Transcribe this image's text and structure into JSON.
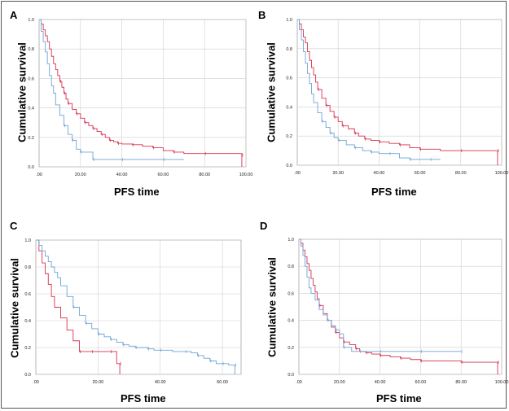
{
  "colors": {
    "red": "#d6324f",
    "blue": "#6fa3d6",
    "grid": "#cfcfcf",
    "axis": "#888888"
  },
  "chart_data": [
    {
      "panel": "A",
      "type": "line",
      "step": true,
      "xlabel": "PFS time",
      "ylabel": "Cumulative survival",
      "xlim": [
        0,
        100
      ],
      "ylim": [
        0,
        1
      ],
      "xticks": [
        ".00",
        "20.00",
        "40.00",
        "60.00",
        "80.00",
        "100.00"
      ],
      "yticks": [
        "0.0",
        "0.2",
        "0.4",
        "0.6",
        "0.8",
        "1.0"
      ],
      "grid": true,
      "series": [
        {
          "color": "red",
          "x": [
            0,
            1,
            2,
            3,
            4,
            5,
            6,
            7,
            8,
            9,
            10,
            11,
            12,
            13,
            14,
            16,
            18,
            20,
            22,
            24,
            26,
            28,
            30,
            32,
            34,
            36,
            38,
            40,
            45,
            50,
            55,
            60,
            65,
            70,
            80,
            90,
            98
          ],
          "y": [
            1.0,
            0.97,
            0.93,
            0.89,
            0.85,
            0.8,
            0.75,
            0.7,
            0.66,
            0.62,
            0.58,
            0.54,
            0.5,
            0.46,
            0.43,
            0.39,
            0.36,
            0.33,
            0.3,
            0.28,
            0.26,
            0.24,
            0.22,
            0.2,
            0.18,
            0.17,
            0.16,
            0.155,
            0.15,
            0.14,
            0.13,
            0.11,
            0.1,
            0.09,
            0.09,
            0.09,
            0.08
          ],
          "end": 0.0
        },
        {
          "color": "blue",
          "x": [
            0,
            1,
            2,
            3,
            4,
            5,
            6,
            7,
            8,
            10,
            12,
            14,
            16,
            18,
            20,
            22,
            26,
            30,
            40,
            50,
            60,
            70
          ],
          "y": [
            1.0,
            0.92,
            0.85,
            0.78,
            0.7,
            0.62,
            0.55,
            0.5,
            0.42,
            0.35,
            0.28,
            0.22,
            0.18,
            0.12,
            0.1,
            0.1,
            0.05,
            0.05,
            0.05,
            0.05,
            0.05,
            0.05
          ],
          "end": null
        }
      ]
    },
    {
      "panel": "B",
      "type": "line",
      "step": true,
      "xlabel": "PFS time",
      "ylabel": "Cumulative survival",
      "xlim": [
        0,
        100
      ],
      "ylim": [
        0,
        1
      ],
      "xticks": [
        ".00",
        "20.00",
        "40.00",
        "60.00",
        "80.00",
        "100.00"
      ],
      "yticks": [
        "0.0",
        "0.2",
        "0.4",
        "0.6",
        "0.8",
        "1.0"
      ],
      "grid": true,
      "series": [
        {
          "color": "red",
          "x": [
            0,
            1,
            2,
            3,
            4,
            5,
            6,
            7,
            8,
            9,
            10,
            12,
            14,
            16,
            18,
            20,
            22,
            25,
            28,
            30,
            33,
            36,
            40,
            45,
            50,
            55,
            60,
            70,
            80,
            90,
            98
          ],
          "y": [
            1.0,
            0.97,
            0.93,
            0.88,
            0.84,
            0.78,
            0.72,
            0.67,
            0.62,
            0.57,
            0.52,
            0.46,
            0.41,
            0.37,
            0.33,
            0.3,
            0.27,
            0.25,
            0.22,
            0.2,
            0.18,
            0.17,
            0.16,
            0.15,
            0.14,
            0.12,
            0.11,
            0.1,
            0.1,
            0.1,
            0.1
          ],
          "end": 0.0
        },
        {
          "color": "blue",
          "x": [
            0,
            1,
            2,
            3,
            4,
            5,
            6,
            7,
            8,
            10,
            12,
            14,
            16,
            18,
            20,
            24,
            28,
            32,
            36,
            40,
            45,
            50,
            55,
            60,
            65,
            70
          ],
          "y": [
            1.0,
            0.93,
            0.86,
            0.78,
            0.7,
            0.63,
            0.56,
            0.49,
            0.43,
            0.36,
            0.3,
            0.26,
            0.22,
            0.19,
            0.17,
            0.14,
            0.12,
            0.1,
            0.09,
            0.08,
            0.08,
            0.05,
            0.04,
            0.04,
            0.04,
            0.04
          ],
          "end": null
        }
      ]
    },
    {
      "panel": "C",
      "type": "line",
      "step": true,
      "xlabel": "PFS time",
      "ylabel": "Cumulative survival",
      "xlim": [
        0,
        66
      ],
      "ylim": [
        0,
        1
      ],
      "xticks": [
        ".00",
        "20.00",
        "40.00",
        "60.00"
      ],
      "yticks": [
        "0.0",
        "0.2",
        "0.4",
        "0.6",
        "0.8",
        "1.0"
      ],
      "grid": true,
      "series": [
        {
          "color": "red",
          "x": [
            0,
            1,
            2,
            3,
            4,
            5,
            6,
            8,
            10,
            12,
            14,
            16,
            18,
            20,
            24,
            26,
            27
          ],
          "y": [
            1.0,
            0.92,
            0.83,
            0.75,
            0.67,
            0.58,
            0.5,
            0.42,
            0.33,
            0.25,
            0.17,
            0.17,
            0.17,
            0.17,
            0.17,
            0.08,
            0.08
          ],
          "end": 0.0
        },
        {
          "color": "blue",
          "x": [
            0,
            1,
            2,
            3,
            4,
            5,
            6,
            7,
            8,
            10,
            12,
            14,
            16,
            18,
            20,
            22,
            24,
            26,
            28,
            30,
            32,
            34,
            36,
            38,
            40,
            44,
            48,
            50,
            52,
            54,
            56,
            58,
            60,
            62,
            64
          ],
          "y": [
            1.0,
            0.96,
            0.92,
            0.88,
            0.84,
            0.8,
            0.76,
            0.72,
            0.66,
            0.58,
            0.5,
            0.44,
            0.38,
            0.34,
            0.3,
            0.28,
            0.26,
            0.24,
            0.22,
            0.21,
            0.2,
            0.2,
            0.19,
            0.18,
            0.18,
            0.17,
            0.17,
            0.16,
            0.14,
            0.12,
            0.1,
            0.08,
            0.08,
            0.07,
            0.07
          ],
          "end": 0.0
        }
      ]
    },
    {
      "panel": "D",
      "type": "line",
      "step": true,
      "xlabel": "PFS time",
      "ylabel": "Cumulative survival",
      "xlim": [
        0,
        100
      ],
      "ylim": [
        0,
        1
      ],
      "xticks": [
        ".00",
        "20.00",
        "40.00",
        "60.00",
        "80.00",
        "100.00"
      ],
      "yticks": [
        "0.0",
        "0.2",
        "0.4",
        "0.6",
        "0.8",
        "1.0"
      ],
      "grid": true,
      "series": [
        {
          "color": "red",
          "x": [
            0,
            1,
            2,
            3,
            4,
            5,
            6,
            7,
            8,
            9,
            10,
            12,
            14,
            16,
            18,
            20,
            22,
            25,
            28,
            30,
            33,
            36,
            40,
            45,
            50,
            55,
            60,
            70,
            80,
            90,
            98
          ],
          "y": [
            1.0,
            0.97,
            0.92,
            0.87,
            0.82,
            0.77,
            0.71,
            0.66,
            0.61,
            0.56,
            0.51,
            0.45,
            0.4,
            0.35,
            0.31,
            0.27,
            0.24,
            0.22,
            0.19,
            0.17,
            0.16,
            0.15,
            0.14,
            0.13,
            0.12,
            0.11,
            0.1,
            0.1,
            0.09,
            0.09,
            0.09
          ],
          "end": 0.0
        },
        {
          "color": "blue",
          "x": [
            0,
            1,
            2,
            3,
            4,
            5,
            6,
            8,
            10,
            12,
            14,
            16,
            18,
            20,
            22,
            26,
            30,
            34,
            40,
            50,
            60,
            70,
            80
          ],
          "y": [
            1.0,
            0.95,
            0.88,
            0.8,
            0.72,
            0.64,
            0.6,
            0.55,
            0.48,
            0.44,
            0.4,
            0.36,
            0.33,
            0.3,
            0.2,
            0.17,
            0.17,
            0.17,
            0.17,
            0.17,
            0.17,
            0.17,
            0.17
          ],
          "end": null
        }
      ]
    }
  ]
}
